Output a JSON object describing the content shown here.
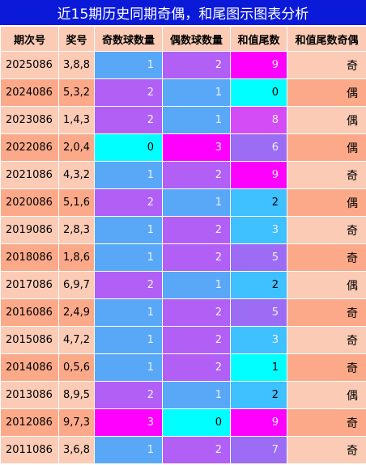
{
  "title": "近15期历史同期奇偶，和尾图示图表分析",
  "headers": [
    "期次号",
    "奖号",
    "奇数球数量",
    "偶数球数量",
    "和值尾数",
    "和值尾数奇偶"
  ],
  "colors": {
    "title_bg": "#0b1ad9",
    "header_bg": "#fccbb6",
    "row_light": "#fccbb6",
    "row_dark": "#fca98a",
    "blue": "#59a8f7",
    "purple": "#b15ff5",
    "magenta": "#ff00ff",
    "cyan": "#00ffff",
    "violet": "#9c6cf5"
  },
  "rows": [
    {
      "issue": "2025086",
      "number": "3,8,8",
      "odd": "1",
      "even": "2",
      "sum_tail": "9",
      "parity": "奇"
    },
    {
      "issue": "2024086",
      "number": "5,3,2",
      "odd": "2",
      "even": "1",
      "sum_tail": "0",
      "parity": "偶"
    },
    {
      "issue": "2023086",
      "number": "1,4,3",
      "odd": "2",
      "even": "1",
      "sum_tail": "8",
      "parity": "偶"
    },
    {
      "issue": "2022086",
      "number": "2,0,4",
      "odd": "0",
      "even": "3",
      "sum_tail": "6",
      "parity": "偶"
    },
    {
      "issue": "2021086",
      "number": "4,3,2",
      "odd": "1",
      "even": "2",
      "sum_tail": "9",
      "parity": "奇"
    },
    {
      "issue": "2020086",
      "number": "5,1,6",
      "odd": "2",
      "even": "1",
      "sum_tail": "2",
      "parity": "偶"
    },
    {
      "issue": "2019086",
      "number": "2,8,3",
      "odd": "1",
      "even": "2",
      "sum_tail": "3",
      "parity": "奇"
    },
    {
      "issue": "2018086",
      "number": "1,8,6",
      "odd": "1",
      "even": "2",
      "sum_tail": "5",
      "parity": "奇"
    },
    {
      "issue": "2017086",
      "number": "6,9,7",
      "odd": "2",
      "even": "1",
      "sum_tail": "2",
      "parity": "偶"
    },
    {
      "issue": "2016086",
      "number": "2,4,9",
      "odd": "1",
      "even": "2",
      "sum_tail": "5",
      "parity": "奇"
    },
    {
      "issue": "2015086",
      "number": "4,7,2",
      "odd": "1",
      "even": "2",
      "sum_tail": "3",
      "parity": "奇"
    },
    {
      "issue": "2014086",
      "number": "0,5,6",
      "odd": "1",
      "even": "2",
      "sum_tail": "1",
      "parity": "奇"
    },
    {
      "issue": "2013086",
      "number": "8,9,5",
      "odd": "2",
      "even": "1",
      "sum_tail": "2",
      "parity": "偶"
    },
    {
      "issue": "2012086",
      "number": "9,7,3",
      "odd": "3",
      "even": "0",
      "sum_tail": "9",
      "parity": "奇"
    },
    {
      "issue": "2011086",
      "number": "3,6,8",
      "odd": "1",
      "even": "2",
      "sum_tail": "7",
      "parity": "奇"
    }
  ]
}
